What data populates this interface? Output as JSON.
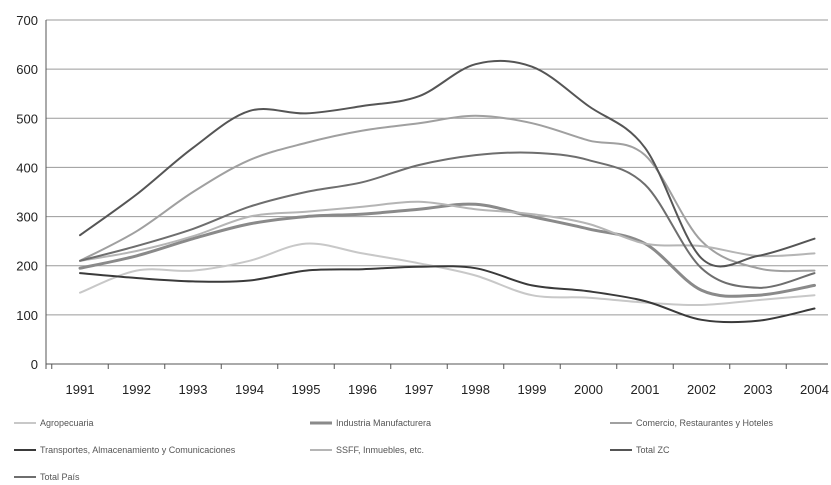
{
  "chart_data": {
    "type": "line",
    "x": [
      "1991",
      "1992",
      "1993",
      "1994",
      "1995",
      "1996",
      "1997",
      "1998",
      "1999",
      "2000",
      "2001",
      "2002",
      "2003",
      "2004"
    ],
    "ylim": [
      0,
      700
    ],
    "yticks": [
      0,
      100,
      200,
      300,
      400,
      500,
      600,
      700
    ],
    "grid": true,
    "legend_position": "bottom",
    "series": [
      {
        "name": "Agropecuaria",
        "color": "#c8c8c8",
        "width": 2,
        "values": [
          145,
          190,
          190,
          210,
          245,
          225,
          205,
          180,
          140,
          135,
          125,
          120,
          130,
          140
        ]
      },
      {
        "name": "Industria Manufacturera",
        "color": "#8a8a8a",
        "width": 3,
        "values": [
          195,
          220,
          255,
          285,
          300,
          305,
          315,
          325,
          300,
          275,
          245,
          150,
          140,
          160
        ]
      },
      {
        "name": "Comercio, Restaurantes y Hoteles",
        "color": "#a0a0a0",
        "width": 2,
        "values": [
          210,
          270,
          350,
          415,
          450,
          475,
          490,
          505,
          490,
          455,
          425,
          250,
          195,
          190
        ]
      },
      {
        "name": "Transportes, Almacenamiento y Comunicaciones",
        "color": "#3a3a3a",
        "width": 2,
        "values": [
          185,
          175,
          168,
          170,
          190,
          193,
          198,
          195,
          160,
          148,
          128,
          90,
          88,
          113
        ]
      },
      {
        "name": "SSFF, Inmuebles, etc.",
        "color": "#b5b5b5",
        "width": 2,
        "values": [
          210,
          230,
          260,
          300,
          310,
          320,
          330,
          315,
          305,
          285,
          245,
          240,
          220,
          225
        ]
      },
      {
        "name": "Total ZC",
        "color": "#555555",
        "width": 2,
        "values": [
          262,
          345,
          440,
          515,
          510,
          525,
          545,
          610,
          605,
          525,
          440,
          215,
          220,
          255
        ]
      },
      {
        "name": "Total País",
        "color": "#6e6e6e",
        "width": 2,
        "values": [
          210,
          240,
          275,
          320,
          350,
          370,
          405,
          425,
          430,
          415,
          365,
          195,
          155,
          185
        ]
      }
    ]
  }
}
